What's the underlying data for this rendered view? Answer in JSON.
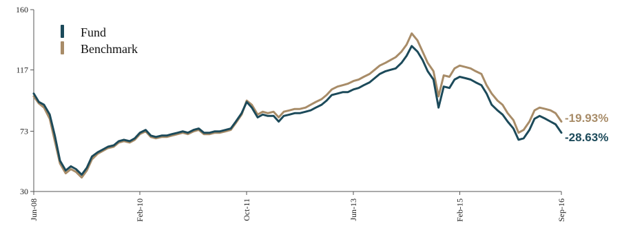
{
  "chart_data": {
    "type": "line",
    "title": "",
    "xlabel": "",
    "ylabel": "",
    "ylim": [
      30,
      160
    ],
    "yticks": [
      30,
      73,
      117,
      160
    ],
    "xticks": [
      "Jun-08",
      "Feb-10",
      "Oct-11",
      "Jun-13",
      "Feb-15",
      "Sep-16"
    ],
    "xticks_t": [
      2008.42,
      2010.08,
      2011.75,
      2013.42,
      2015.08,
      2016.67
    ],
    "xlim": [
      2008.42,
      2016.67
    ],
    "grid": false,
    "legend": {
      "placement": "top-left",
      "entries": [
        {
          "label": "Fund",
          "color": "#1c4a5a"
        },
        {
          "label": "Benchmark",
          "color": "#a88c68"
        }
      ]
    },
    "series": [
      {
        "name": "Fund",
        "color": "#1c4a5a",
        "end_label": "-28.63%",
        "x": [
          2008.42,
          2008.5,
          2008.58,
          2008.67,
          2008.75,
          2008.83,
          2008.92,
          2009.0,
          2009.08,
          2009.17,
          2009.25,
          2009.33,
          2009.42,
          2009.5,
          2009.58,
          2009.67,
          2009.75,
          2009.83,
          2009.92,
          2010.0,
          2010.08,
          2010.17,
          2010.25,
          2010.33,
          2010.42,
          2010.5,
          2010.58,
          2010.67,
          2010.75,
          2010.83,
          2010.92,
          2011.0,
          2011.08,
          2011.17,
          2011.25,
          2011.33,
          2011.42,
          2011.5,
          2011.58,
          2011.67,
          2011.75,
          2011.83,
          2011.92,
          2012.0,
          2012.08,
          2012.17,
          2012.25,
          2012.33,
          2012.42,
          2012.5,
          2012.58,
          2012.67,
          2012.75,
          2012.83,
          2012.92,
          2013.0,
          2013.08,
          2013.17,
          2013.25,
          2013.33,
          2013.42,
          2013.5,
          2013.58,
          2013.67,
          2013.75,
          2013.83,
          2013.92,
          2014.0,
          2014.08,
          2014.17,
          2014.25,
          2014.33,
          2014.42,
          2014.5,
          2014.58,
          2014.67,
          2014.75,
          2014.83,
          2014.92,
          2015.0,
          2015.08,
          2015.17,
          2015.25,
          2015.33,
          2015.42,
          2015.5,
          2015.58,
          2015.67,
          2015.75,
          2015.83,
          2015.92,
          2016.0,
          2016.08,
          2016.17,
          2016.25,
          2016.33,
          2016.42,
          2016.5,
          2016.58,
          2016.67
        ],
        "y": [
          100,
          94,
          92,
          85,
          70,
          52,
          45,
          48,
          46,
          42,
          47,
          55,
          58,
          60,
          62,
          63,
          66,
          67,
          66,
          68,
          72,
          74,
          70,
          69,
          70,
          70,
          71,
          72,
          73,
          72,
          74,
          75,
          72,
          72,
          73,
          73,
          74,
          75,
          80,
          86,
          94,
          90,
          83,
          85,
          84,
          84,
          80,
          84,
          85,
          86,
          86,
          87,
          88,
          90,
          92,
          95,
          99,
          100,
          101,
          101,
          103,
          104,
          106,
          108,
          111,
          114,
          116,
          117,
          118,
          122,
          127,
          134,
          130,
          124,
          116,
          110,
          90,
          105,
          104,
          110,
          112,
          111,
          110,
          108,
          106,
          100,
          92,
          88,
          85,
          80,
          75,
          67,
          68,
          74,
          82,
          84,
          82,
          80,
          78,
          72
        ]
      },
      {
        "name": "Benchmark",
        "color": "#a88c68",
        "end_label": "-19.93%",
        "x": [
          2008.42,
          2008.5,
          2008.58,
          2008.67,
          2008.75,
          2008.83,
          2008.92,
          2009.0,
          2009.08,
          2009.17,
          2009.25,
          2009.33,
          2009.42,
          2009.5,
          2009.58,
          2009.67,
          2009.75,
          2009.83,
          2009.92,
          2010.0,
          2010.08,
          2010.17,
          2010.25,
          2010.33,
          2010.42,
          2010.5,
          2010.58,
          2010.67,
          2010.75,
          2010.83,
          2010.92,
          2011.0,
          2011.08,
          2011.17,
          2011.25,
          2011.33,
          2011.42,
          2011.5,
          2011.58,
          2011.67,
          2011.75,
          2011.83,
          2011.92,
          2012.0,
          2012.08,
          2012.17,
          2012.25,
          2012.33,
          2012.42,
          2012.5,
          2012.58,
          2012.67,
          2012.75,
          2012.83,
          2012.92,
          2013.0,
          2013.08,
          2013.17,
          2013.25,
          2013.33,
          2013.42,
          2013.5,
          2013.58,
          2013.67,
          2013.75,
          2013.83,
          2013.92,
          2014.0,
          2014.08,
          2014.17,
          2014.25,
          2014.33,
          2014.42,
          2014.5,
          2014.58,
          2014.67,
          2014.75,
          2014.83,
          2014.92,
          2015.0,
          2015.08,
          2015.17,
          2015.25,
          2015.33,
          2015.42,
          2015.5,
          2015.58,
          2015.67,
          2015.75,
          2015.83,
          2015.92,
          2016.0,
          2016.08,
          2016.17,
          2016.25,
          2016.33,
          2016.42,
          2016.5,
          2016.58,
          2016.67
        ],
        "y": [
          98,
          93,
          90,
          82,
          66,
          50,
          43,
          46,
          44,
          40,
          45,
          53,
          57,
          59,
          61,
          62,
          65,
          66,
          65,
          67,
          71,
          73,
          69,
          68,
          69,
          69,
          70,
          71,
          72,
          71,
          73,
          74,
          71,
          71,
          72,
          72,
          73,
          74,
          79,
          85,
          95,
          92,
          85,
          87,
          86,
          87,
          83,
          87,
          88,
          89,
          89,
          90,
          92,
          94,
          96,
          99,
          103,
          105,
          106,
          107,
          109,
          110,
          112,
          114,
          117,
          120,
          122,
          124,
          126,
          130,
          135,
          143,
          138,
          130,
          122,
          116,
          98,
          113,
          112,
          118,
          120,
          119,
          118,
          116,
          114,
          106,
          100,
          95,
          92,
          86,
          81,
          72,
          74,
          80,
          88,
          90,
          89,
          88,
          86,
          80
        ]
      }
    ]
  }
}
